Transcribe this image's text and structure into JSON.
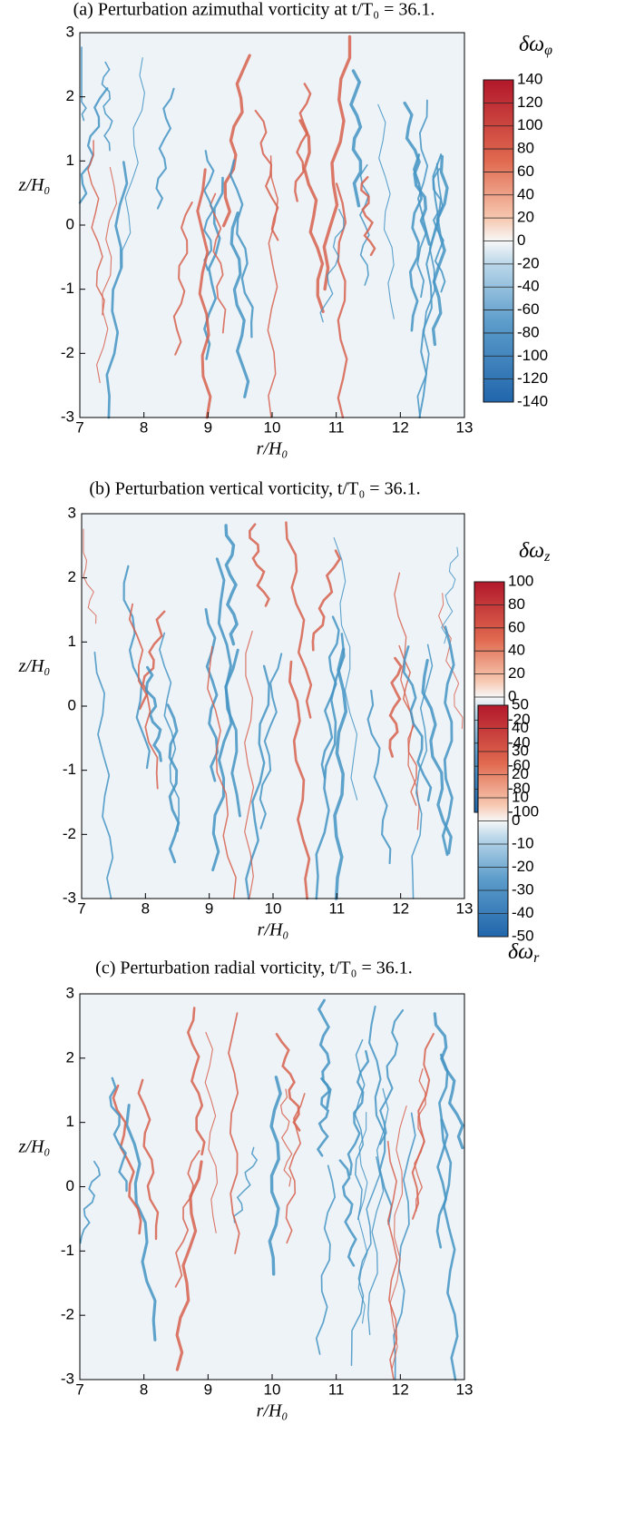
{
  "chart_data": [
    {
      "type": "heatmap",
      "title": "(a) Perturbation azimuthal vorticity at t/T₀ = 36.1.",
      "xlabel": "r/H₀",
      "ylabel": "z/H₀",
      "xlim": [
        7,
        13
      ],
      "xticks": [
        7,
        8,
        9,
        10,
        11,
        12,
        13
      ],
      "ylim": [
        -3,
        3
      ],
      "yticks": [
        -3,
        -2,
        -1,
        0,
        1,
        2,
        3
      ],
      "colorbar_label": "δω",
      "colorbar_label_sub": "φ",
      "colorlim": [
        -140,
        140
      ],
      "colorbar_ticks": [
        140,
        120,
        100,
        80,
        60,
        40,
        20,
        0,
        -20,
        -40,
        -60,
        -80,
        -100,
        -120,
        -140
      ]
    },
    {
      "type": "heatmap",
      "title": "(b) Perturbation vertical vorticity, t/T₀ = 36.1.",
      "xlabel": "r/H₀",
      "ylabel": "z/H₀",
      "xlim": [
        7,
        13
      ],
      "xticks": [
        7,
        8,
        9,
        10,
        11,
        12,
        13
      ],
      "ylim": [
        -3,
        3
      ],
      "yticks": [
        -3,
        -2,
        -1,
        0,
        1,
        2,
        3
      ],
      "colorbar_label": "δω",
      "colorbar_label_sub": "z",
      "colorlim": [
        -100,
        100
      ],
      "colorbar_ticks": [
        100,
        80,
        60,
        40,
        20,
        0,
        -20,
        -40,
        -60,
        -80,
        -100
      ]
    },
    {
      "type": "heatmap",
      "title": "(c) Perturbation radial vorticity, t/T₀ = 36.1.",
      "xlabel": "r/H₀",
      "ylabel": "z/H₀",
      "xlim": [
        7,
        13
      ],
      "xticks": [
        7,
        8,
        9,
        10,
        11,
        12,
        13
      ],
      "ylim": [
        -3,
        3
      ],
      "yticks": [
        -3,
        -2,
        -1,
        0,
        1,
        2,
        3
      ],
      "colorbar_label": "δω",
      "colorbar_label_sub": "r",
      "colorlim": [
        -50,
        50
      ],
      "colorbar_ticks": [
        50,
        40,
        30,
        20,
        10,
        0,
        -10,
        -20,
        -30,
        -40,
        -50
      ]
    }
  ]
}
